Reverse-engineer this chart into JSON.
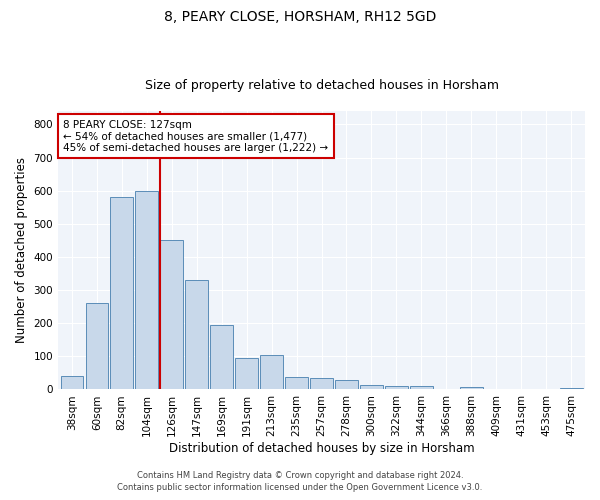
{
  "title": "8, PEARY CLOSE, HORSHAM, RH12 5GD",
  "subtitle": "Size of property relative to detached houses in Horsham",
  "xlabel": "Distribution of detached houses by size in Horsham",
  "ylabel": "Number of detached properties",
  "categories": [
    "38sqm",
    "60sqm",
    "82sqm",
    "104sqm",
    "126sqm",
    "147sqm",
    "169sqm",
    "191sqm",
    "213sqm",
    "235sqm",
    "257sqm",
    "278sqm",
    "300sqm",
    "322sqm",
    "344sqm",
    "366sqm",
    "388sqm",
    "409sqm",
    "431sqm",
    "453sqm",
    "475sqm"
  ],
  "values": [
    40,
    260,
    580,
    600,
    450,
    330,
    195,
    95,
    105,
    37,
    35,
    30,
    13,
    10,
    10,
    0,
    7,
    0,
    0,
    0,
    5
  ],
  "bar_color": "#c8d8ea",
  "bar_edge_color": "#5b8db8",
  "vline_index": 4,
  "vline_color": "#cc0000",
  "annotation_text": "8 PEARY CLOSE: 127sqm\n← 54% of detached houses are smaller (1,477)\n45% of semi-detached houses are larger (1,222) →",
  "annotation_box_color": "#ffffff",
  "annotation_box_edge": "#cc0000",
  "ylim": [
    0,
    840
  ],
  "yticks": [
    0,
    100,
    200,
    300,
    400,
    500,
    600,
    700,
    800
  ],
  "footer1": "Contains HM Land Registry data © Crown copyright and database right 2024.",
  "footer2": "Contains public sector information licensed under the Open Government Licence v3.0.",
  "bg_color": "#ffffff",
  "plot_bg_color": "#f0f4fa",
  "title_fontsize": 10,
  "subtitle_fontsize": 9,
  "axis_label_fontsize": 8.5,
  "tick_fontsize": 7.5,
  "annotation_fontsize": 7.5
}
